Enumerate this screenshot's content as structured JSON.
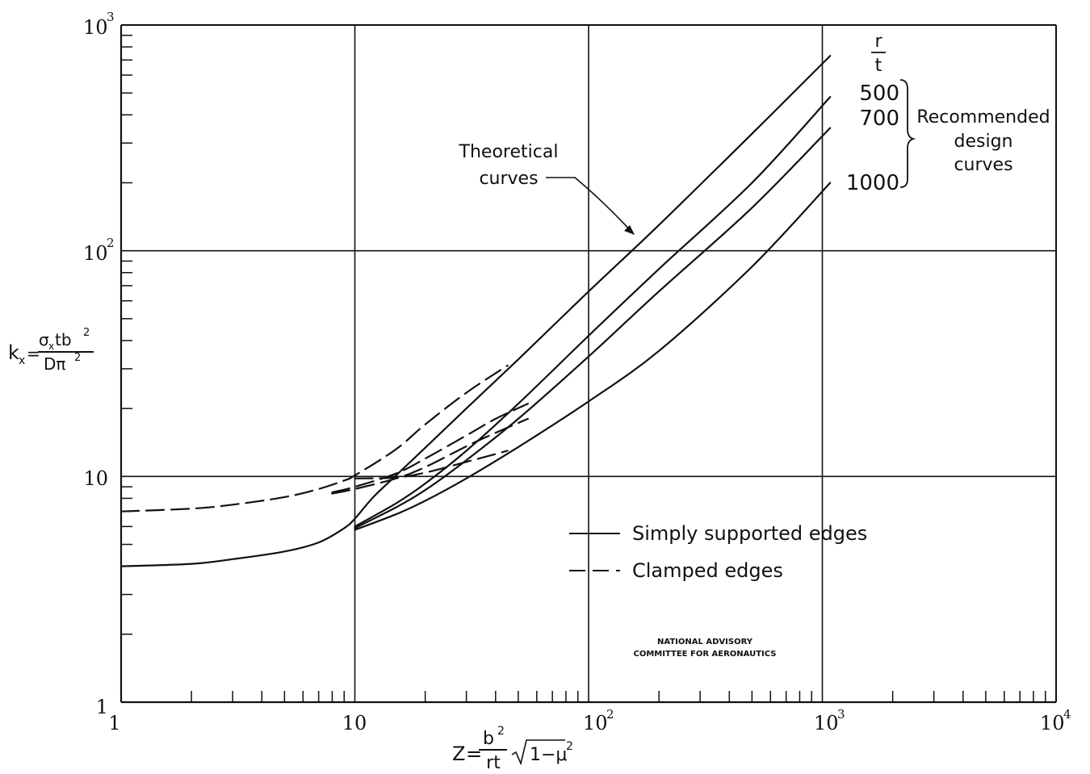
{
  "chart_data": {
    "type": "line",
    "x_scale": "log",
    "y_scale": "log",
    "xlim": [
      1,
      10000
    ],
    "ylim": [
      1,
      1000
    ],
    "grid": "major decades only",
    "x_tick_labels": [
      "1",
      "10",
      "10",
      "10",
      "10"
    ],
    "x_tick_exponents": [
      "",
      "",
      "2",
      "3",
      "4"
    ],
    "y_tick_labels": [
      "1",
      "10",
      "10",
      "10"
    ],
    "y_tick_exponents": [
      "",
      "",
      "2",
      "3"
    ],
    "xlabel": {
      "lhs": "Z",
      "fraction_numerator": "b",
      "numerator_exponent": "2",
      "fraction_denominator": "rt",
      "radical": "1−μ",
      "radical_exponent": "2"
    },
    "ylabel": {
      "lhs": "k",
      "lhs_subscript": "x",
      "numerator": "σ",
      "numerator_subscript": "x",
      "numerator_rest": "tb",
      "numerator_exponent": "2",
      "denominator": "Dπ",
      "denominator_exponent": "2"
    },
    "rt_header": {
      "numerator": "r",
      "denominator": "t"
    },
    "rt_values": [
      "500",
      "700",
      "1000"
    ],
    "bracket_label": [
      "Recommended",
      "design",
      "curves"
    ],
    "annotation_theoretical": [
      "Theoretical",
      "curves"
    ],
    "legend": {
      "placement": "lower-right",
      "items": [
        {
          "label": "Simply supported edges",
          "style": "solid"
        },
        {
          "label": "Clamped edges",
          "style": "dashed"
        }
      ]
    },
    "stamp": [
      "NATIONAL ADVISORY",
      "COMMITTEE FOR AERONAUTICS"
    ],
    "series": [
      {
        "group": "simply supported, theoretical",
        "style": "solid",
        "x": [
          1,
          2,
          3,
          5,
          7,
          9,
          10,
          12,
          15,
          20,
          30,
          50,
          100,
          200,
          500,
          1080
        ],
        "y": [
          4.0,
          4.1,
          4.3,
          4.65,
          5.1,
          5.9,
          6.5,
          8.1,
          10.1,
          13.4,
          20,
          33,
          66,
          130,
          330,
          730
        ]
      },
      {
        "group": "simply supported, r/t = 500",
        "style": "solid",
        "x": [
          10,
          15,
          20,
          30,
          50,
          100,
          200,
          500,
          1080
        ],
        "y": [
          6.0,
          7.6,
          9.3,
          13,
          21,
          42,
          83,
          200,
          480
        ]
      },
      {
        "group": "simply supported, r/t = 700",
        "style": "solid",
        "x": [
          10,
          15,
          20,
          30,
          50,
          100,
          200,
          500,
          1080
        ],
        "y": [
          5.9,
          7.3,
          8.7,
          11.8,
          18,
          34,
          66,
          155,
          350
        ]
      },
      {
        "group": "simply supported, r/t = 1000",
        "style": "solid",
        "x": [
          10,
          15,
          20,
          30,
          50,
          100,
          200,
          500,
          1080
        ],
        "y": [
          5.8,
          6.8,
          7.8,
          9.8,
          13.5,
          21.5,
          36,
          85,
          200
        ]
      },
      {
        "group": "clamped, theoretical",
        "style": "dashed",
        "x": [
          1,
          2,
          3,
          5,
          7,
          9,
          10,
          15,
          20,
          30,
          45
        ],
        "y": [
          7.0,
          7.2,
          7.5,
          8.1,
          8.8,
          9.6,
          10.1,
          13.2,
          17,
          23.5,
          31
        ]
      },
      {
        "group": "clamped, r/t = 500",
        "style": "dashed",
        "x": [
          8,
          10,
          15,
          20,
          30,
          40,
          55
        ],
        "y": [
          8.5,
          9.0,
          10.3,
          12,
          15.2,
          18,
          21
        ]
      },
      {
        "group": "clamped, r/t = 700",
        "style": "dashed",
        "x": [
          8,
          10,
          15,
          20,
          30,
          40,
          55
        ],
        "y": [
          8.4,
          8.8,
          9.8,
          11,
          13.6,
          15.6,
          18
        ]
      },
      {
        "group": "clamped, r/t = 1000",
        "style": "dashed",
        "x": [
          10,
          15,
          20,
          30,
          45
        ],
        "y": [
          9.8,
          9.9,
          10.4,
          11.6,
          13
        ]
      }
    ]
  }
}
